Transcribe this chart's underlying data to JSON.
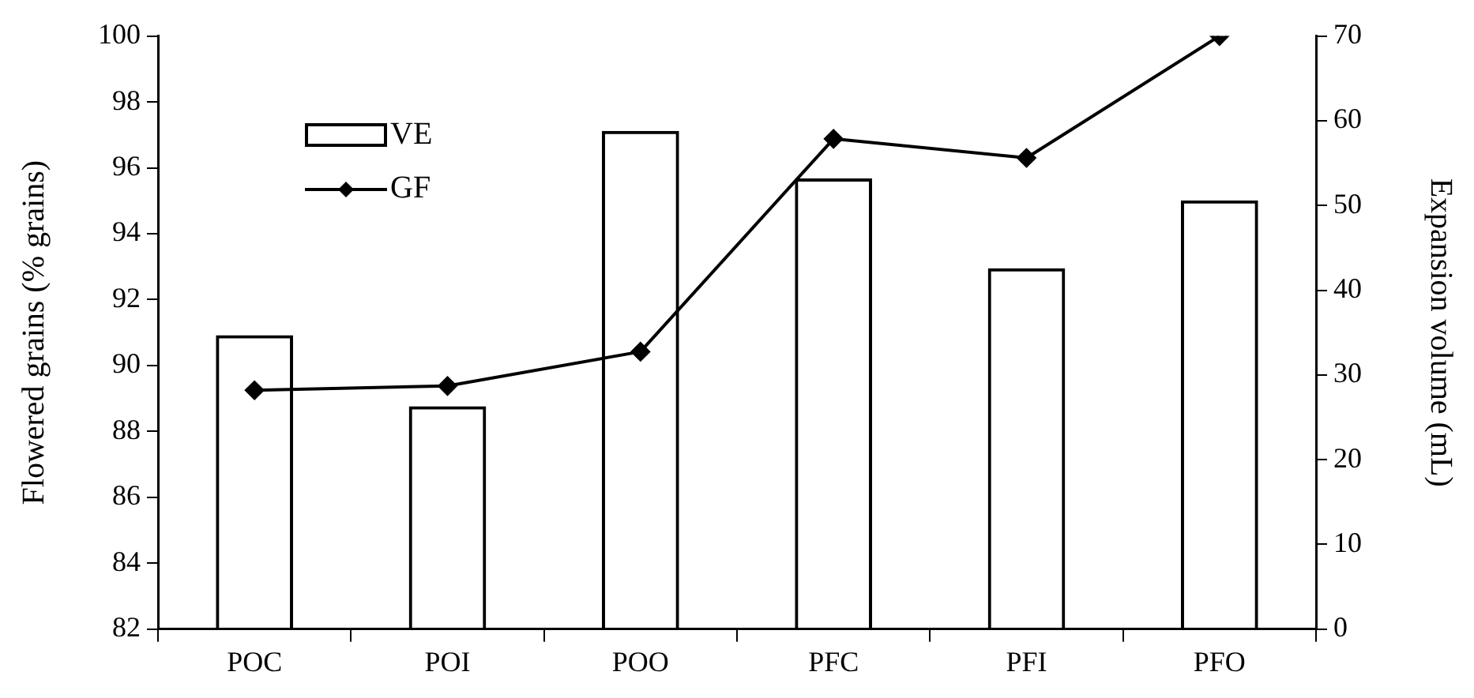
{
  "chart_data": {
    "type": "bar",
    "categories": [
      "POC",
      "POI",
      "POO",
      "PFC",
      "PFI",
      "PFO"
    ],
    "series": [
      {
        "name": "VE",
        "axis": "y2",
        "color": "#000000",
        "values": [
          34.7,
          26.3,
          58.8,
          53.2,
          42.6,
          50.6
        ]
      },
      {
        "name": "GF",
        "type": "line",
        "color": "#000000",
        "marker": "diamond",
        "values": [
          89.25,
          89.38,
          90.42,
          96.88,
          96.3,
          100
        ]
      }
    ],
    "ylabel": "Flowered grains (% grains)",
    "y2label": "Expansion volume (mL)",
    "ylim": [
      82,
      100
    ],
    "yticks": [
      82,
      84,
      86,
      88,
      90,
      92,
      94,
      96,
      98,
      100
    ],
    "y2lim": [
      0,
      70
    ],
    "y2ticks": [
      0,
      10,
      20,
      30,
      40,
      50,
      60,
      70
    ],
    "grid": false,
    "legend": "top left"
  }
}
